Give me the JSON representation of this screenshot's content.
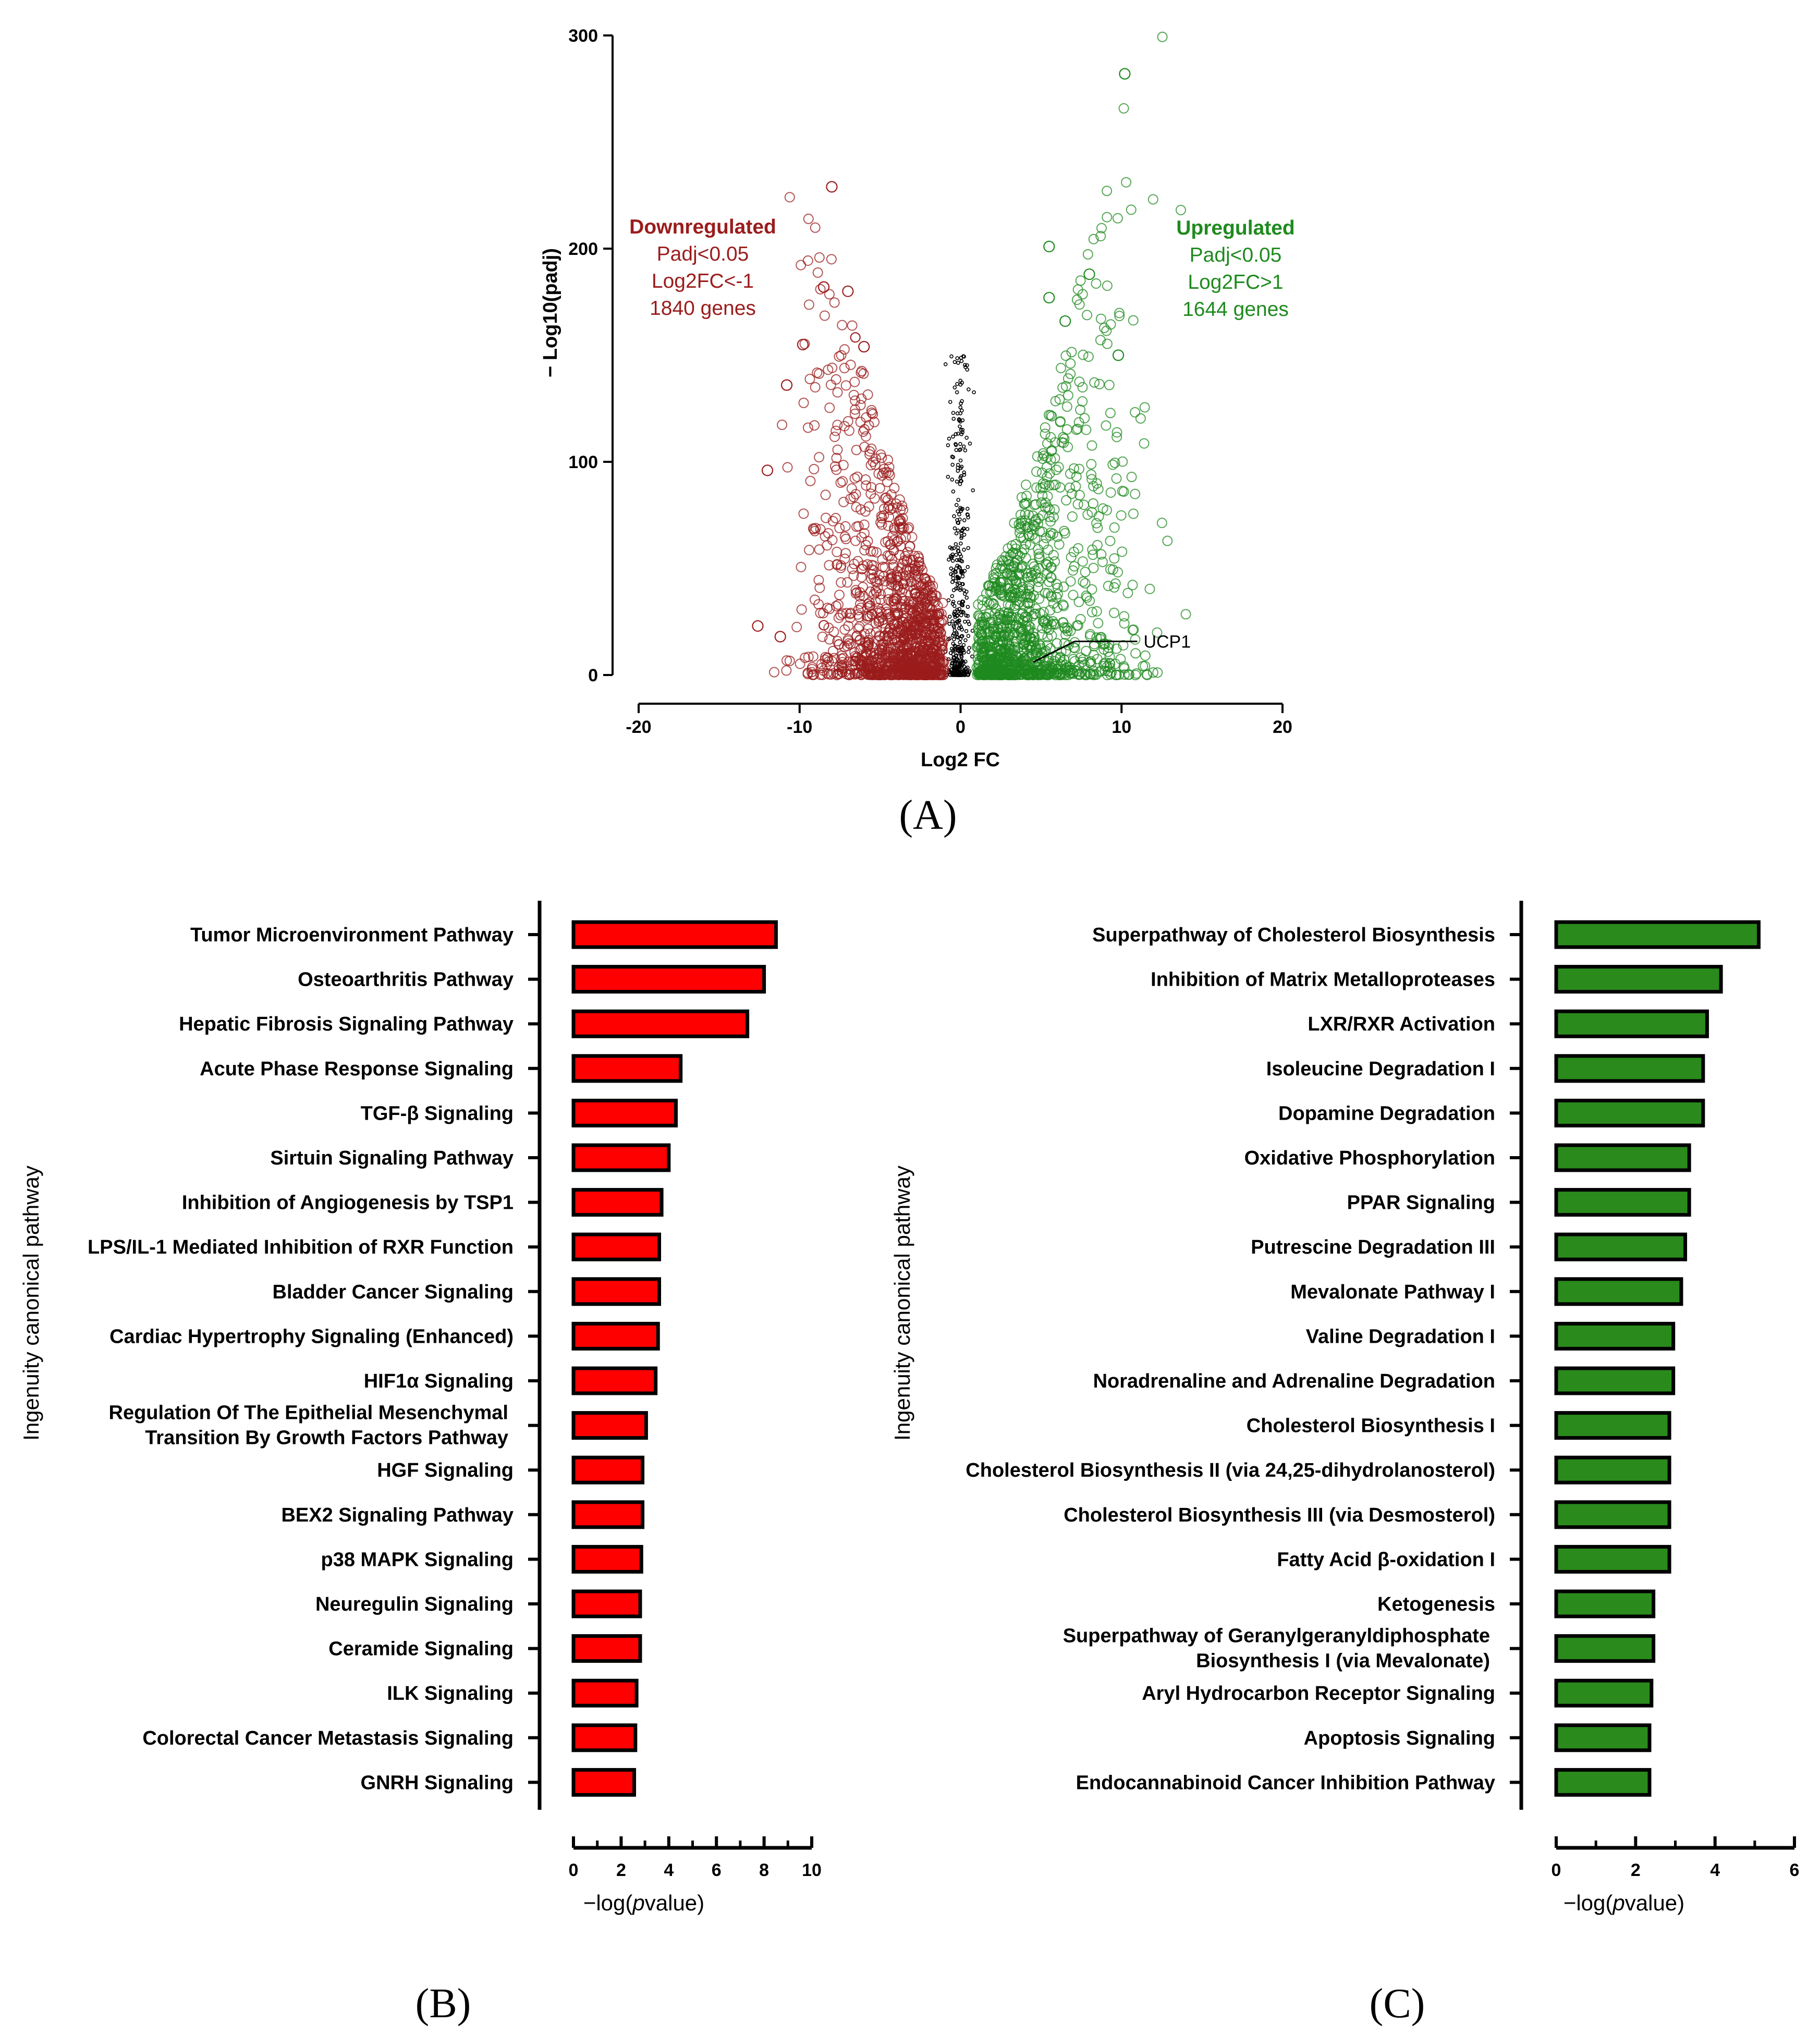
{
  "colors": {
    "down": "#9b1c1c",
    "up": "#1f8a1f",
    "ns": "#000000",
    "barB": "#ff0000",
    "barC": "#2a8a1c"
  },
  "chart_data": [
    {
      "id": "A",
      "type": "scatter",
      "panel_label": "(A)",
      "xlabel": "Log2 FC",
      "ylabel": "− Log10(padj)",
      "xlim": [
        -20,
        20
      ],
      "ylim": [
        0,
        300
      ],
      "xticks": [
        -20,
        -10,
        0,
        10,
        20
      ],
      "yticks": [
        0,
        100,
        200,
        300
      ],
      "annotations": {
        "down": {
          "title": "Downregulated",
          "lines": [
            "Padj<0.05",
            "Log2FC<-1",
            "1840 genes"
          ]
        },
        "up": {
          "title": "Upregulated",
          "lines": [
            "Padj<0.05",
            "Log2FC>1",
            "1644 genes"
          ]
        },
        "gene_label": "UCP1",
        "gene_point": {
          "x": 4.5,
          "y": 6
        }
      },
      "highlight_points": [
        {
          "x": 10.2,
          "y": 282
        },
        {
          "x": -8,
          "y": 229
        },
        {
          "x": 5.5,
          "y": 201
        },
        {
          "x": 8,
          "y": 188
        },
        {
          "x": -8.5,
          "y": 182
        },
        {
          "x": -7,
          "y": 180
        },
        {
          "x": 5.5,
          "y": 177
        },
        {
          "x": 6.5,
          "y": 166
        },
        {
          "x": -9.8,
          "y": 155
        },
        {
          "x": -6,
          "y": 154
        },
        {
          "x": 9.8,
          "y": 150
        },
        {
          "x": -10.8,
          "y": 136
        },
        {
          "x": -12,
          "y": 96
        },
        {
          "x": -12.6,
          "y": 23
        },
        {
          "x": -11.2,
          "y": 18
        }
      ]
    },
    {
      "id": "B",
      "type": "bar",
      "orientation": "horizontal",
      "panel_label": "(B)",
      "xlabel_prefix": "−log(",
      "xlabel_italic": "p",
      "xlabel_suffix": "value)",
      "ylabel": "Ingenuity canonical pathway",
      "xlim": [
        0,
        10
      ],
      "xticks": [
        0,
        2,
        4,
        6,
        8,
        10
      ],
      "categories": [
        "Tumor Microenvironment Pathway",
        "Osteoarthritis Pathway",
        "Hepatic Fibrosis Signaling Pathway",
        "Acute Phase Response Signaling",
        "TGF-β Signaling",
        "Sirtuin Signaling Pathway",
        "Inhibition of Angiogenesis by TSP1",
        "LPS/IL-1 Mediated Inhibition of RXR Function",
        "Bladder Cancer Signaling",
        "Cardiac Hypertrophy Signaling (Enhanced)",
        "HIF1α Signaling",
        "Regulation Of The Epithelial Mesenchymal\nTransition By Growth Factors Pathway",
        "HGF Signaling",
        "BEX2 Signaling Pathway",
        "p38 MAPK Signaling",
        "Neuregulin Signaling",
        "Ceramide Signaling",
        "ILK Signaling",
        "Colorectal Cancer Metastasis Signaling",
        "GNRH Signaling"
      ],
      "values": [
        8.5,
        8.0,
        7.3,
        4.5,
        4.3,
        4.0,
        3.7,
        3.6,
        3.6,
        3.55,
        3.45,
        3.05,
        2.9,
        2.9,
        2.85,
        2.8,
        2.8,
        2.65,
        2.6,
        2.55
      ]
    },
    {
      "id": "C",
      "type": "bar",
      "orientation": "horizontal",
      "panel_label": "(C)",
      "xlabel_prefix": "−log(",
      "xlabel_italic": "p",
      "xlabel_suffix": "value)",
      "ylabel": "Ingenuity canonical pathway",
      "xlim": [
        0,
        6
      ],
      "xticks": [
        0,
        2,
        4,
        6
      ],
      "categories": [
        "Superpathway of Cholesterol Biosynthesis",
        "Inhibition of Matrix Metalloproteases",
        "LXR/RXR Activation",
        "Isoleucine Degradation I",
        "Dopamine Degradation",
        "Oxidative Phosphorylation",
        "PPAR Signaling",
        "Putrescine Degradation III",
        "Mevalonate Pathway I",
        "Valine Degradation I",
        "Noradrenaline and Adrenaline Degradation",
        "Cholesterol Biosynthesis I",
        "Cholesterol Biosynthesis II (via 24,25-dihydrolanosterol)",
        "Cholesterol Biosynthesis III (via Desmosterol)",
        "Fatty Acid β-oxidation I",
        "Ketogenesis",
        "Superpathway of Geranylgeranyldiphosphate\nBiosynthesis I (via Mevalonate)",
        "Aryl Hydrocarbon Receptor Signaling",
        "Apoptosis Signaling",
        "Endocannabinoid Cancer Inhibition Pathway"
      ],
      "values": [
        5.1,
        4.15,
        3.8,
        3.7,
        3.7,
        3.35,
        3.35,
        3.25,
        3.15,
        2.95,
        2.95,
        2.85,
        2.85,
        2.85,
        2.85,
        2.45,
        2.45,
        2.4,
        2.35,
        2.35
      ]
    }
  ]
}
